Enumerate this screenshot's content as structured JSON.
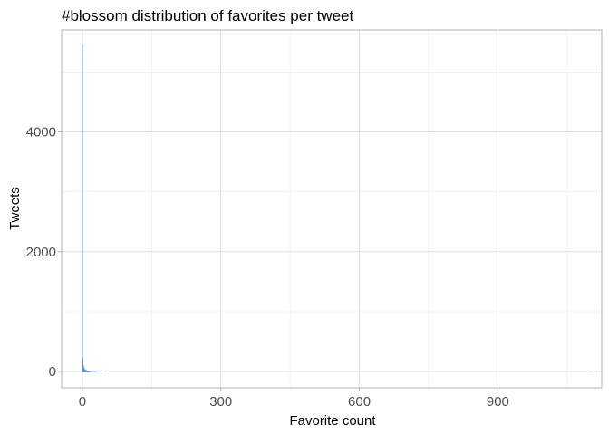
{
  "chart_data": {
    "type": "bar",
    "title": "#blossom distribution of favorites per tweet",
    "xlabel": "Favorite count",
    "ylabel": "Tweets",
    "xlim": [
      -45,
      1125
    ],
    "ylim": [
      -270,
      5700
    ],
    "x_ticks": [
      0,
      300,
      600,
      900
    ],
    "x_tick_labels": [
      "0",
      "300",
      "600",
      "900"
    ],
    "x_minor_ticks": [
      150,
      450,
      750,
      1050
    ],
    "y_ticks": [
      0,
      2000,
      4000
    ],
    "y_tick_labels": [
      "0",
      "2000",
      "4000"
    ],
    "y_minor_ticks": [
      1000,
      3000,
      5000
    ],
    "grid": true,
    "bin_width": 1,
    "bars": [
      {
        "x": 0,
        "value": 5450
      },
      {
        "x": 1,
        "value": 230
      },
      {
        "x": 2,
        "value": 110
      },
      {
        "x": 3,
        "value": 70
      },
      {
        "x": 4,
        "value": 50
      },
      {
        "x": 5,
        "value": 40
      },
      {
        "x": 6,
        "value": 32
      },
      {
        "x": 7,
        "value": 26
      },
      {
        "x": 8,
        "value": 22
      },
      {
        "x": 9,
        "value": 18
      },
      {
        "x": 10,
        "value": 15
      },
      {
        "x": 11,
        "value": 13
      },
      {
        "x": 12,
        "value": 11
      },
      {
        "x": 13,
        "value": 10
      },
      {
        "x": 14,
        "value": 9
      },
      {
        "x": 15,
        "value": 8
      },
      {
        "x": 16,
        "value": 7
      },
      {
        "x": 17,
        "value": 6
      },
      {
        "x": 18,
        "value": 6
      },
      {
        "x": 19,
        "value": 5
      },
      {
        "x": 20,
        "value": 5
      },
      {
        "x": 21,
        "value": 4
      },
      {
        "x": 22,
        "value": 4
      },
      {
        "x": 23,
        "value": 3
      },
      {
        "x": 24,
        "value": 3
      },
      {
        "x": 25,
        "value": 3
      },
      {
        "x": 26,
        "value": 2
      },
      {
        "x": 27,
        "value": 2
      },
      {
        "x": 28,
        "value": 2
      },
      {
        "x": 29,
        "value": 2
      },
      {
        "x": 30,
        "value": 1
      },
      {
        "x": 35,
        "value": 1
      },
      {
        "x": 40,
        "value": 1
      },
      {
        "x": 50,
        "value": 1
      },
      {
        "x": 1100,
        "value": 1
      }
    ],
    "colors": {
      "bar_fill": "#3f87c4",
      "bar_outline": "#5b9bd5"
    }
  }
}
